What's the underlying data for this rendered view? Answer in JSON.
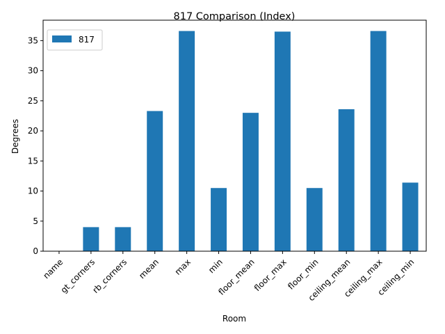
{
  "chart_data": {
    "type": "bar",
    "title": "817 Comparison (Index)",
    "xlabel": "Room",
    "ylabel": "Degrees",
    "categories": [
      "name",
      "gt_corners",
      "rb_corners",
      "mean",
      "max",
      "min",
      "floor_mean",
      "floor_max",
      "floor_min",
      "ceiling_mean",
      "ceiling_max",
      "ceiling_min"
    ],
    "series": [
      {
        "name": "817",
        "values": [
          0,
          4,
          4,
          23.3,
          36.6,
          10.5,
          23.0,
          36.5,
          10.5,
          23.6,
          36.6,
          11.4
        ],
        "color": "#1f77b4"
      }
    ],
    "yticks": [
      0,
      5,
      10,
      15,
      20,
      25,
      30,
      35
    ],
    "ylim": [
      0,
      38.4
    ],
    "grid": false,
    "legend_position": "top-left"
  }
}
